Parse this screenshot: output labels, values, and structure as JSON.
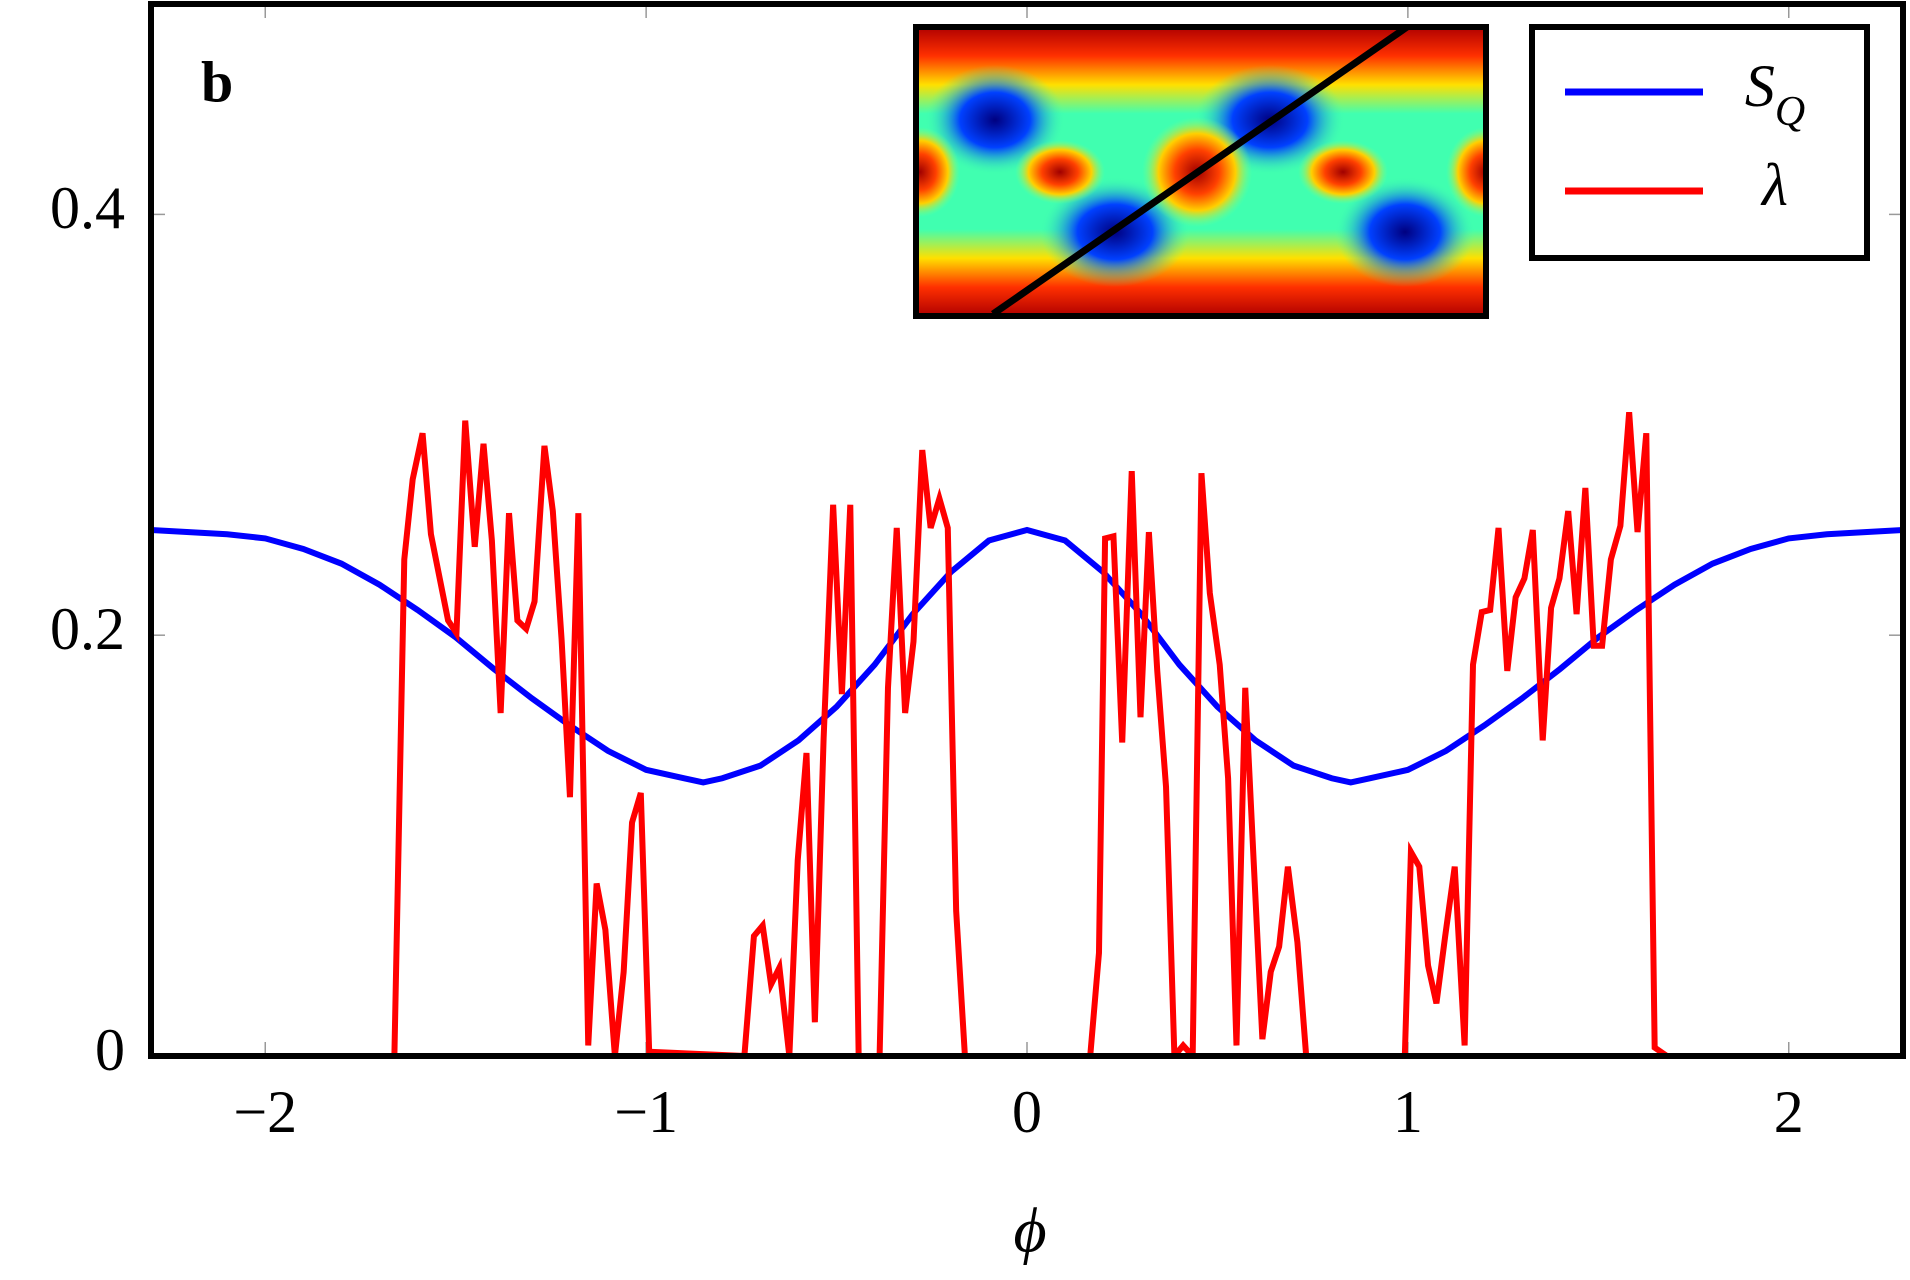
{
  "chart_data": {
    "type": "line",
    "panel_label": "b",
    "x_label": "ϕ",
    "xlim": [
      -2.3,
      2.3
    ],
    "ylim": [
      0,
      0.5
    ],
    "xticks": [
      {
        "value": -2,
        "label": "−2"
      },
      {
        "value": -1,
        "label": "−1"
      },
      0,
      1,
      2
    ],
    "yticks": [
      0,
      0.2,
      0.4
    ],
    "legend": "upper right",
    "series": [
      {
        "name": "S_Q",
        "color": "#0000ff",
        "x": [
          -2.3,
          -2.2,
          -2.1,
          -2.0,
          -1.9,
          -1.8,
          -1.7,
          -1.6,
          -1.5,
          -1.4,
          -1.3,
          -1.2,
          -1.1,
          -1.0,
          -0.9,
          -0.85,
          -0.8,
          -0.7,
          -0.6,
          -0.5,
          -0.4,
          -0.3,
          -0.2,
          -0.1,
          0,
          0.1,
          0.2,
          0.3,
          0.4,
          0.5,
          0.6,
          0.7,
          0.8,
          0.85,
          0.9,
          1.0,
          1.1,
          1.2,
          1.3,
          1.4,
          1.5,
          1.6,
          1.7,
          1.8,
          1.9,
          2.0,
          2.1,
          2.2,
          2.3
        ],
        "values": [
          0.25,
          0.249,
          0.248,
          0.246,
          0.241,
          0.234,
          0.224,
          0.212,
          0.199,
          0.184,
          0.17,
          0.157,
          0.145,
          0.136,
          0.132,
          0.13,
          0.132,
          0.138,
          0.15,
          0.166,
          0.186,
          0.21,
          0.23,
          0.245,
          0.25,
          0.245,
          0.23,
          0.21,
          0.186,
          0.166,
          0.15,
          0.138,
          0.132,
          0.13,
          0.132,
          0.136,
          0.145,
          0.157,
          0.17,
          0.184,
          0.199,
          0.212,
          0.224,
          0.234,
          0.241,
          0.246,
          0.248,
          0.249,
          0.25
        ]
      },
      {
        "name": "λ",
        "color": "#ff0000",
        "x": [
          -2.3,
          -1.661,
          -1.635,
          -1.613,
          -1.587,
          -1.565,
          -1.542,
          -1.52,
          -1.498,
          -1.475,
          -1.45,
          -1.427,
          -1.405,
          -1.382,
          -1.36,
          -1.338,
          -1.315,
          -1.293,
          -1.267,
          -1.245,
          -1.222,
          -1.2,
          -1.178,
          -1.152,
          -1.13,
          -1.107,
          -1.082,
          -1.059,
          -1.037,
          -1.014,
          -0.992,
          -0.742,
          -0.717,
          -0.694,
          -0.672,
          -0.65,
          -0.624,
          -0.602,
          -0.579,
          -0.557,
          -0.534,
          -0.509,
          -0.486,
          -0.464,
          -0.442,
          -0.387,
          -0.365,
          -0.342,
          -0.32,
          -0.298,
          -0.275,
          -0.253,
          -0.23,
          -0.208,
          -0.186,
          -0.163,
          0.166,
          0.189,
          0.205,
          0.227,
          0.25,
          0.275,
          0.298,
          0.32,
          0.342,
          0.365,
          0.387,
          0.41,
          0.435,
          0.458,
          0.48,
          0.506,
          0.528,
          0.55,
          0.573,
          0.595,
          0.618,
          0.64,
          0.662,
          0.685,
          0.71,
          0.733,
          0.992,
          1.008,
          1.03,
          1.053,
          1.075,
          1.098,
          1.123,
          1.149,
          1.171,
          1.194,
          1.216,
          1.238,
          1.261,
          1.283,
          1.306,
          1.328,
          1.354,
          1.376,
          1.398,
          1.421,
          1.443,
          1.466,
          1.488,
          1.51,
          1.533,
          1.558,
          1.581,
          1.603,
          1.626,
          1.648,
          1.68,
          2.3
        ],
        "values": [
          0,
          0,
          0.236,
          0.274,
          0.296,
          0.248,
          0.227,
          0.207,
          0.201,
          0.302,
          0.242,
          0.291,
          0.245,
          0.163,
          0.258,
          0.207,
          0.203,
          0.216,
          0.29,
          0.259,
          0.198,
          0.123,
          0.258,
          0.005,
          0.082,
          0.06,
          0,
          0.04,
          0.111,
          0.125,
          0.002,
          0,
          0.057,
          0.062,
          0.034,
          0.042,
          0,
          0.093,
          0.144,
          0.016,
          0.151,
          0.262,
          0.172,
          0.262,
          0,
          0,
          0.175,
          0.251,
          0.163,
          0.197,
          0.288,
          0.251,
          0.265,
          0.251,
          0.069,
          0,
          0,
          0.049,
          0.246,
          0.247,
          0.149,
          0.278,
          0.161,
          0.249,
          0.183,
          0.128,
          0,
          0.005,
          0,
          0.277,
          0.22,
          0.186,
          0.132,
          0.005,
          0.175,
          0.093,
          0.008,
          0.04,
          0.052,
          0.09,
          0.054,
          0,
          0,
          0.097,
          0.09,
          0.043,
          0.025,
          0.057,
          0.09,
          0.005,
          0.186,
          0.211,
          0.212,
          0.251,
          0.183,
          0.218,
          0.227,
          0.25,
          0.15,
          0.213,
          0.227,
          0.259,
          0.21,
          0.27,
          0.195,
          0.195,
          0.236,
          0.252,
          0.306,
          0.249,
          0.296,
          0.004,
          0,
          0
        ]
      }
    ]
  }
}
